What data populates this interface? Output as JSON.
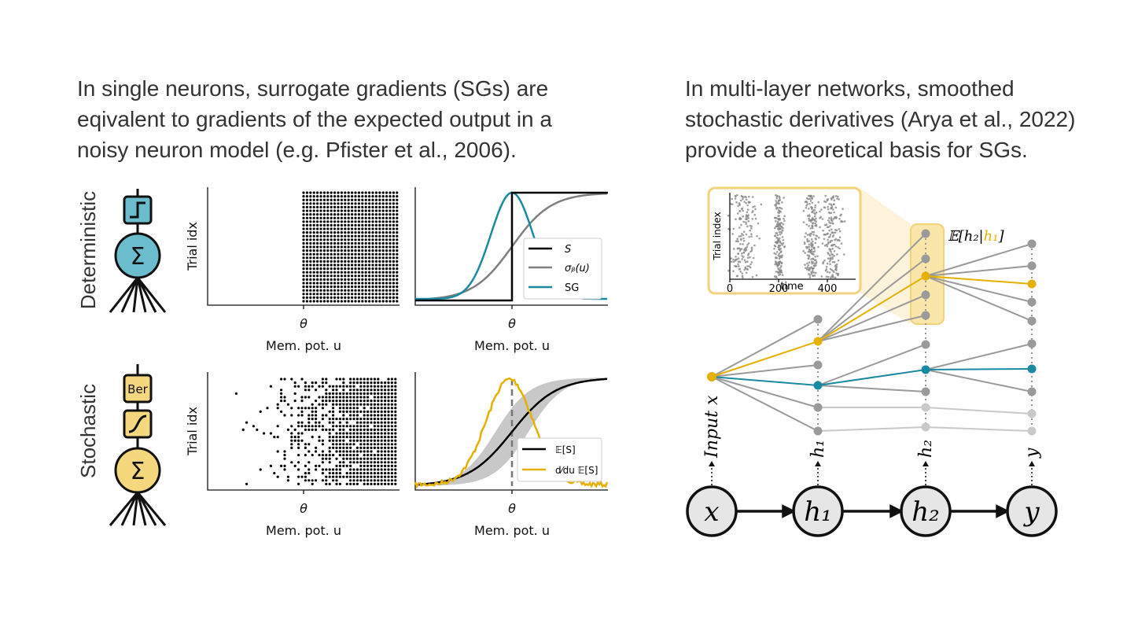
{
  "left_text": [
    "In single neurons, surrogate gradients (SGs) are",
    "eqivalent to gradients of the expected output in a",
    "noisy neuron model (e.g. Pfister et al., 2006)."
  ],
  "right_text": [
    "In multi-layer networks, smoothed",
    "stochastic derivatives (Arya et al., 2022)",
    "provide a theoretical basis for SGs."
  ],
  "rows": [
    "Deterministic",
    "Stochastic"
  ],
  "ber_label": "Ber",
  "plots": [
    {
      "y_label": "Trial idx",
      "tick": "θ",
      "x_label": "Mem. pot. u"
    },
    {
      "tick": "θ",
      "x_label": "Mem. pot. u",
      "legend": [
        "S",
        "σᵦ(u)",
        "SG"
      ]
    },
    {
      "y_label": "Trial idx",
      "tick": "θ",
      "x_label": "Mem. pot. u"
    },
    {
      "tick": "θ",
      "x_label": "Mem. pot. u",
      "legend": [
        "𝔼[S]",
        "d⁄du 𝔼[S]"
      ]
    }
  ],
  "inset": {
    "y_label": "Trial index",
    "x_label": "time",
    "xticks": [
      0,
      200,
      400
    ]
  },
  "expectation": [
    "𝔼[h₂|",
    "h₁",
    "]"
  ],
  "layer_labels": [
    "Input x",
    "h₁",
    "h₂",
    "y"
  ],
  "nodes": [
    "x",
    "h₁",
    "h₂",
    "y"
  ]
}
